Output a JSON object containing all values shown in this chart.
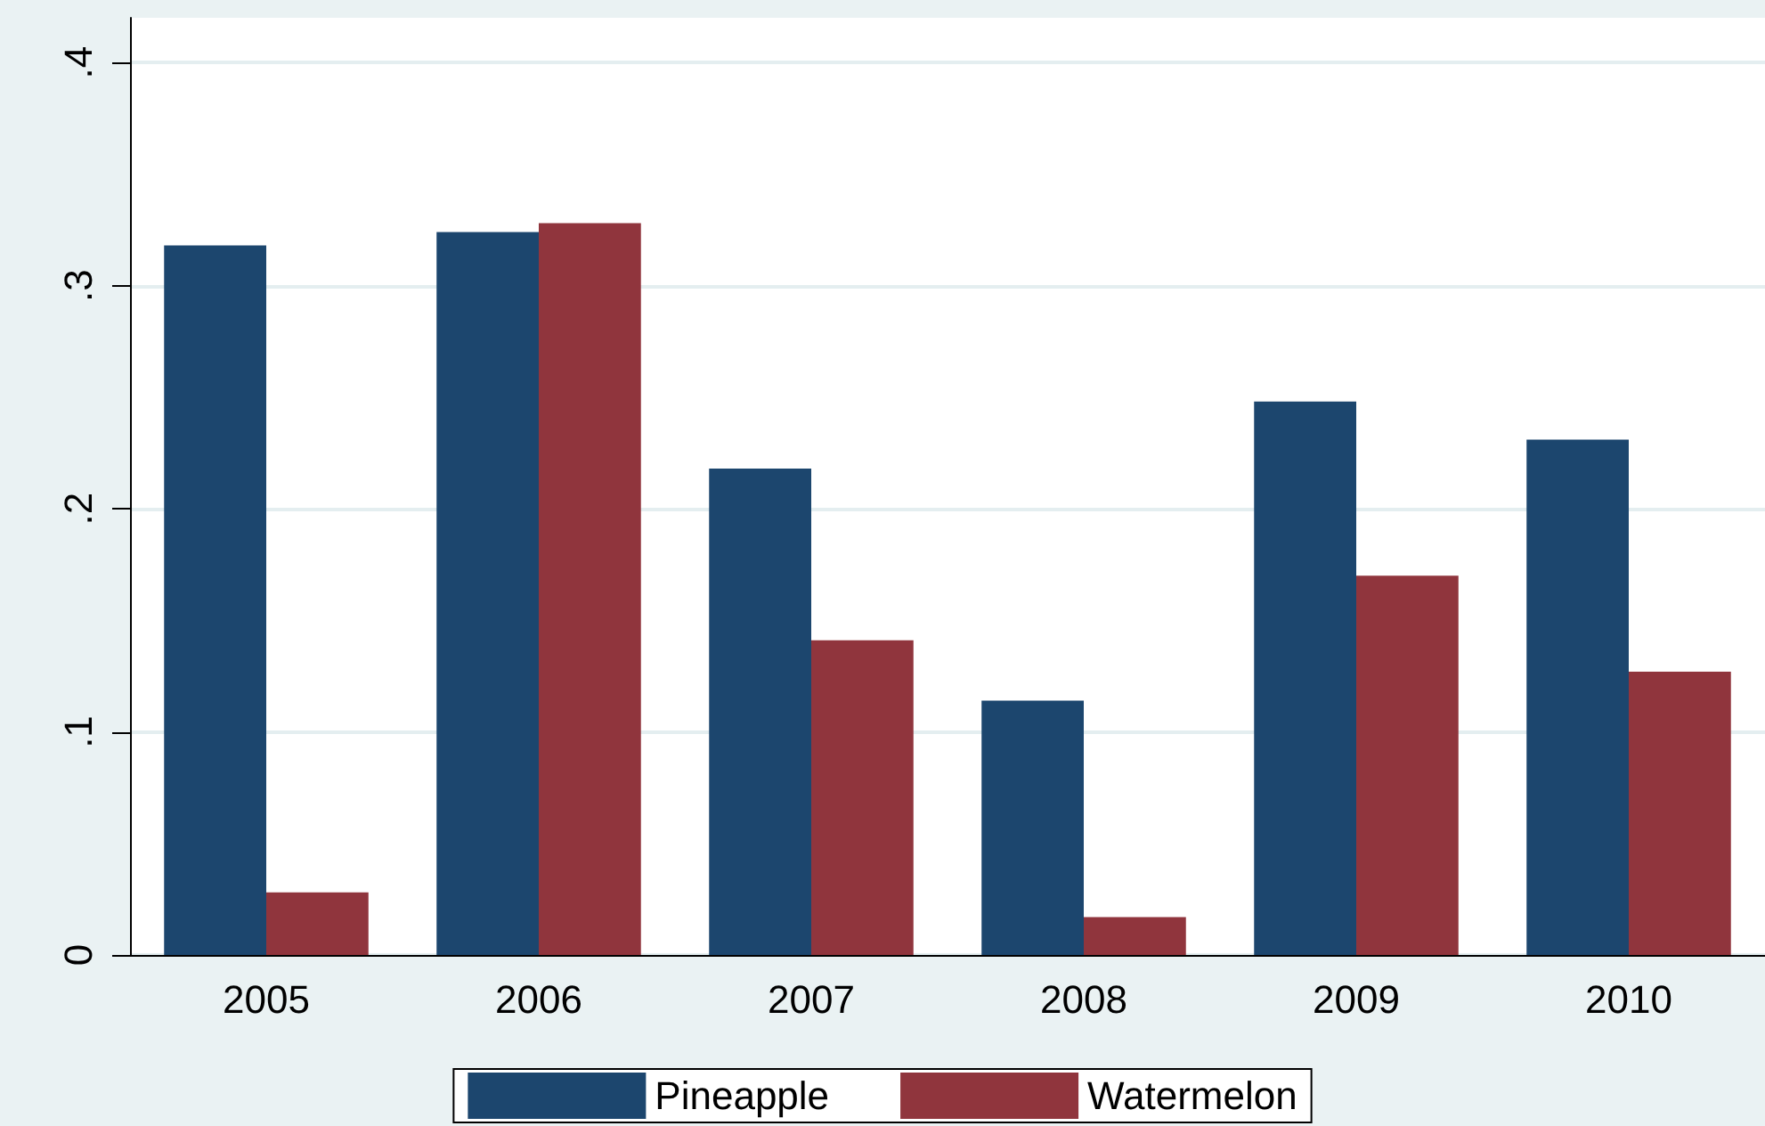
{
  "chart_data": {
    "type": "bar",
    "categories": [
      "2005",
      "2006",
      "2007",
      "2008",
      "2009",
      "2010"
    ],
    "series": [
      {
        "name": "Pineapple",
        "color": "#1c466e",
        "values": [
          0.318,
          0.324,
          0.218,
          0.114,
          0.248,
          0.231
        ]
      },
      {
        "name": "Watermelon",
        "color": "#90353d",
        "values": [
          0.028,
          0.328,
          0.141,
          0.017,
          0.17,
          0.127
        ]
      }
    ],
    "ylim": [
      0,
      0.42
    ],
    "yticks": [
      {
        "value": 0,
        "label": "0"
      },
      {
        "value": 0.1,
        "label": ".1"
      },
      {
        "value": 0.2,
        "label": ".2"
      },
      {
        "value": 0.3,
        "label": ".3"
      },
      {
        "value": 0.4,
        "label": ".4"
      }
    ],
    "grid": "y",
    "legend": "bottom"
  }
}
